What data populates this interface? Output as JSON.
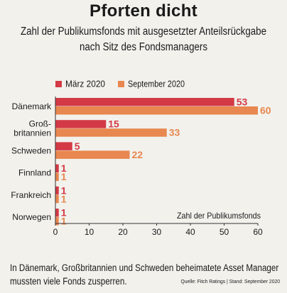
{
  "title": "Pforten dicht",
  "subtitle_line1": "Zahl der Publikumsfonds mit ausgesetzter Anteilsrückgabe",
  "subtitle_line2": "nach Sitz des Fondsmanagers",
  "footer_line1": "In Dänemark, Großbritannien und Schweden beheimatete Asset Manager",
  "footer_line2": "mussten viele Fonds zusperren.",
  "source": "Quelle: Fitch Ratings | Stand: September 2020",
  "colors": {
    "march": "#d33a45",
    "september": "#e8874f"
  },
  "chart_data": {
    "type": "bar",
    "orientation": "horizontal",
    "categories": [
      [
        "Dänemark"
      ],
      [
        "Groß-",
        "britannien"
      ],
      [
        "Schweden"
      ],
      [
        "Finnland"
      ],
      [
        "Frankreich"
      ],
      [
        "Norwegen"
      ]
    ],
    "series": [
      {
        "name": "März 2020",
        "values": [
          53,
          15,
          5,
          1,
          1,
          1
        ]
      },
      {
        "name": "September 2020",
        "values": [
          60,
          33,
          22,
          1,
          1,
          1
        ]
      }
    ],
    "xlabel": "Zahl der Publikumsfonds",
    "xlim": [
      0,
      60
    ],
    "ticks": [
      0,
      10,
      20,
      30,
      40,
      50,
      60
    ],
    "legend_position": "top-left",
    "grid": false
  }
}
